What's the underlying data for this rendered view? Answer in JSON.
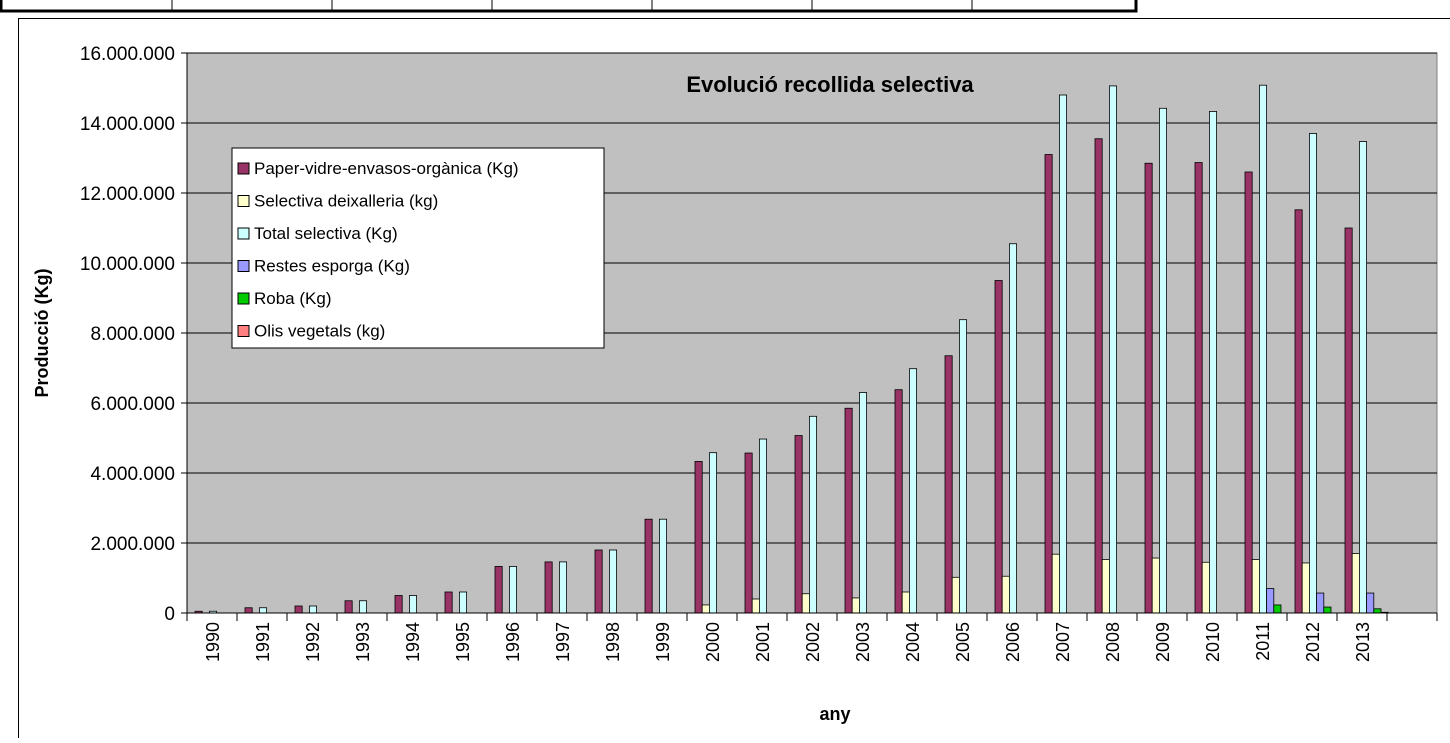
{
  "chart_data": {
    "type": "bar",
    "title": "Evolució recollida selectiva",
    "x_label": "any",
    "y_label": "Producció (Kg)",
    "categories": [
      "1990",
      "1991",
      "1992",
      "1993",
      "1994",
      "1995",
      "1996",
      "1997",
      "1998",
      "1999",
      "2000",
      "2001",
      "2002",
      "2003",
      "2004",
      "2005",
      "2006",
      "2007",
      "2008",
      "2009",
      "2010",
      "2011",
      "2012",
      "2013",
      null
    ],
    "series": [
      {
        "name": "Paper-vidre-envasos-orgànica (Kg)",
        "color": "#993366",
        "values": [
          50000,
          150000,
          200000,
          350000,
          500000,
          600000,
          1330000,
          1460000,
          1800000,
          2680000,
          4330000,
          4570000,
          5070000,
          5850000,
          6380000,
          7350000,
          9500000,
          13100000,
          13550000,
          12850000,
          12870000,
          12600000,
          11520000,
          11000000,
          null
        ]
      },
      {
        "name": "Selectiva deixalleria (kg)",
        "color": "#FFFFCC",
        "values": [
          null,
          null,
          null,
          null,
          null,
          null,
          null,
          null,
          null,
          null,
          230000,
          400000,
          550000,
          430000,
          600000,
          1020000,
          1050000,
          1680000,
          1530000,
          1570000,
          1450000,
          1530000,
          1430000,
          1700000,
          null
        ]
      },
      {
        "name": "Total selectiva (Kg)",
        "color": "#CCFFFF",
        "values": [
          50000,
          150000,
          200000,
          350000,
          500000,
          600000,
          1330000,
          1460000,
          1800000,
          2680000,
          4580000,
          4970000,
          5620000,
          6300000,
          6980000,
          8380000,
          10550000,
          14800000,
          15060000,
          14420000,
          14330000,
          15080000,
          13700000,
          13470000,
          null
        ]
      },
      {
        "name": "Restes esporga (Kg)",
        "color": "#9999FF",
        "values": [
          null,
          null,
          null,
          null,
          null,
          null,
          null,
          null,
          null,
          null,
          null,
          null,
          null,
          null,
          null,
          null,
          null,
          null,
          null,
          null,
          null,
          700000,
          570000,
          570000,
          null
        ]
      },
      {
        "name": "Roba (Kg)",
        "color": "#00CC00",
        "values": [
          null,
          null,
          null,
          null,
          null,
          null,
          null,
          null,
          null,
          null,
          null,
          null,
          null,
          null,
          null,
          null,
          null,
          null,
          null,
          null,
          null,
          230000,
          170000,
          120000,
          null
        ]
      },
      {
        "name": "Olis vegetals (kg)",
        "color": "#FF8080",
        "values": [
          null,
          null,
          null,
          null,
          null,
          null,
          null,
          null,
          null,
          null,
          null,
          null,
          null,
          null,
          null,
          null,
          null,
          null,
          null,
          null,
          null,
          null,
          null,
          20000,
          null
        ]
      }
    ],
    "ylim": [
      0,
      16000000
    ],
    "yticks": [
      0,
      {
        "value": 2000000,
        "label": "2.000.000"
      },
      {
        "value": 4000000,
        "label": "4.000.000"
      },
      {
        "value": 6000000,
        "label": "6.000.000"
      },
      {
        "value": 8000000,
        "label": "8.000.000"
      },
      {
        "value": 10000000,
        "label": "10.000.000"
      },
      {
        "value": 12000000,
        "label": "12.000.000"
      },
      {
        "value": 14000000,
        "label": "14.000.000"
      },
      {
        "value": 16000000,
        "label": "16.000.000"
      }
    ],
    "grid": true,
    "legend": "upper-left",
    "plot_background": "#C0C0C0"
  }
}
